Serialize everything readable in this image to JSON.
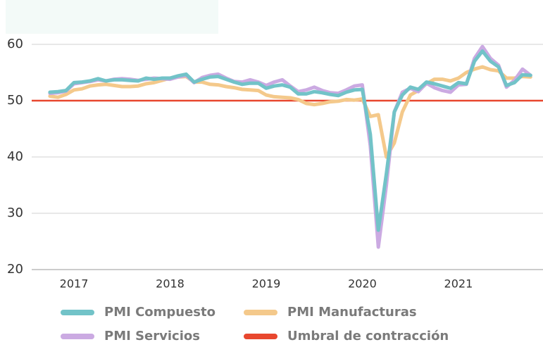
{
  "chart_data": {
    "type": "line",
    "x": [
      2016.75,
      2016.833,
      2016.917,
      2017,
      2017.083,
      2017.167,
      2017.25,
      2017.333,
      2017.417,
      2017.5,
      2017.583,
      2017.667,
      2017.75,
      2017.833,
      2017.917,
      2018,
      2018.083,
      2018.167,
      2018.25,
      2018.333,
      2018.417,
      2018.5,
      2018.583,
      2018.667,
      2018.75,
      2018.833,
      2018.917,
      2019,
      2019.083,
      2019.167,
      2019.25,
      2019.333,
      2019.417,
      2019.5,
      2019.583,
      2019.667,
      2019.75,
      2019.833,
      2019.917,
      2020,
      2020.083,
      2020.167,
      2020.25,
      2020.333,
      2020.417,
      2020.5,
      2020.583,
      2020.667,
      2020.75,
      2020.833,
      2020.917,
      2021,
      2021.083,
      2021.167,
      2021.25,
      2021.333,
      2021.417,
      2021.5,
      2021.583,
      2021.667,
      2021.75
    ],
    "series": [
      {
        "name": "PMI Manufacturas",
        "color": "#f4c98b",
        "values": [
          50.8,
          50.6,
          51.1,
          51.9,
          52.1,
          52.6,
          52.8,
          52.9,
          52.7,
          52.5,
          52.5,
          52.6,
          53,
          53.2,
          53.6,
          54,
          54.2,
          54.3,
          53.3,
          53.3,
          52.9,
          52.8,
          52.5,
          52.3,
          52,
          51.9,
          51.8,
          51,
          50.7,
          50.6,
          50.5,
          50.2,
          49.5,
          49.3,
          49.5,
          49.8,
          49.9,
          50.2,
          50.1,
          50.3,
          47.2,
          47.5,
          40,
          42.5,
          48,
          51,
          51.8,
          53,
          53.8,
          53.8,
          53.5,
          54,
          55,
          55.6,
          56,
          55.5,
          55.3,
          54,
          54,
          54.3,
          54.2
        ]
      },
      {
        "name": "PMI Servicios",
        "color": "#cbaae2",
        "values": [
          51.3,
          51.4,
          51.7,
          53,
          53.2,
          53.4,
          53.7,
          53.5,
          53.8,
          53.9,
          53.8,
          53.6,
          53.8,
          54,
          53.9,
          53.8,
          54.2,
          54.5,
          53.2,
          54.1,
          54.5,
          54.7,
          54,
          53.4,
          53.3,
          53.7,
          53.3,
          52.7,
          53.3,
          53.7,
          52.6,
          51.6,
          51.9,
          52.4,
          51.8,
          51.4,
          51.3,
          51.9,
          52.6,
          52.8,
          42,
          24,
          35,
          48,
          51.5,
          52.2,
          51.6,
          53.1,
          52.3,
          51.8,
          51.5,
          52.8,
          52.9,
          57.5,
          59.6,
          57.5,
          56.3,
          52.4,
          53.6,
          55.6,
          54.5
        ]
      },
      {
        "name": "PMI Compuesto",
        "color": "#72c3c8",
        "values": [
          51.5,
          51.6,
          51.8,
          53.2,
          53.3,
          53.5,
          53.9,
          53.5,
          53.7,
          53.7,
          53.6,
          53.5,
          54,
          53.8,
          54,
          54,
          54.4,
          54.7,
          53.3,
          53.8,
          54.2,
          54.3,
          53.8,
          53.3,
          52.9,
          53.1,
          53.1,
          52.2,
          52.6,
          52.8,
          52.4,
          51.2,
          51.2,
          51.6,
          51.4,
          51.1,
          50.9,
          51.5,
          51.9,
          52,
          44,
          27,
          37,
          48,
          51,
          52.4,
          52,
          53.3,
          53,
          52.6,
          52.2,
          53.2,
          53,
          57,
          58.8,
          57,
          56,
          52.7,
          53.2,
          54.6,
          54.5
        ]
      }
    ],
    "threshold": {
      "name": "Umbral de contracción",
      "color": "#e8472e",
      "value": 50
    },
    "xlim": [
      2016.56,
      2021.88
    ],
    "xticks": [
      2017,
      2018,
      2019,
      2020,
      2021
    ],
    "ylim": [
      20,
      60
    ],
    "yticks": [
      20,
      30,
      40,
      50,
      60
    ],
    "grid": true,
    "legend_order": [
      2,
      0,
      1
    ]
  }
}
